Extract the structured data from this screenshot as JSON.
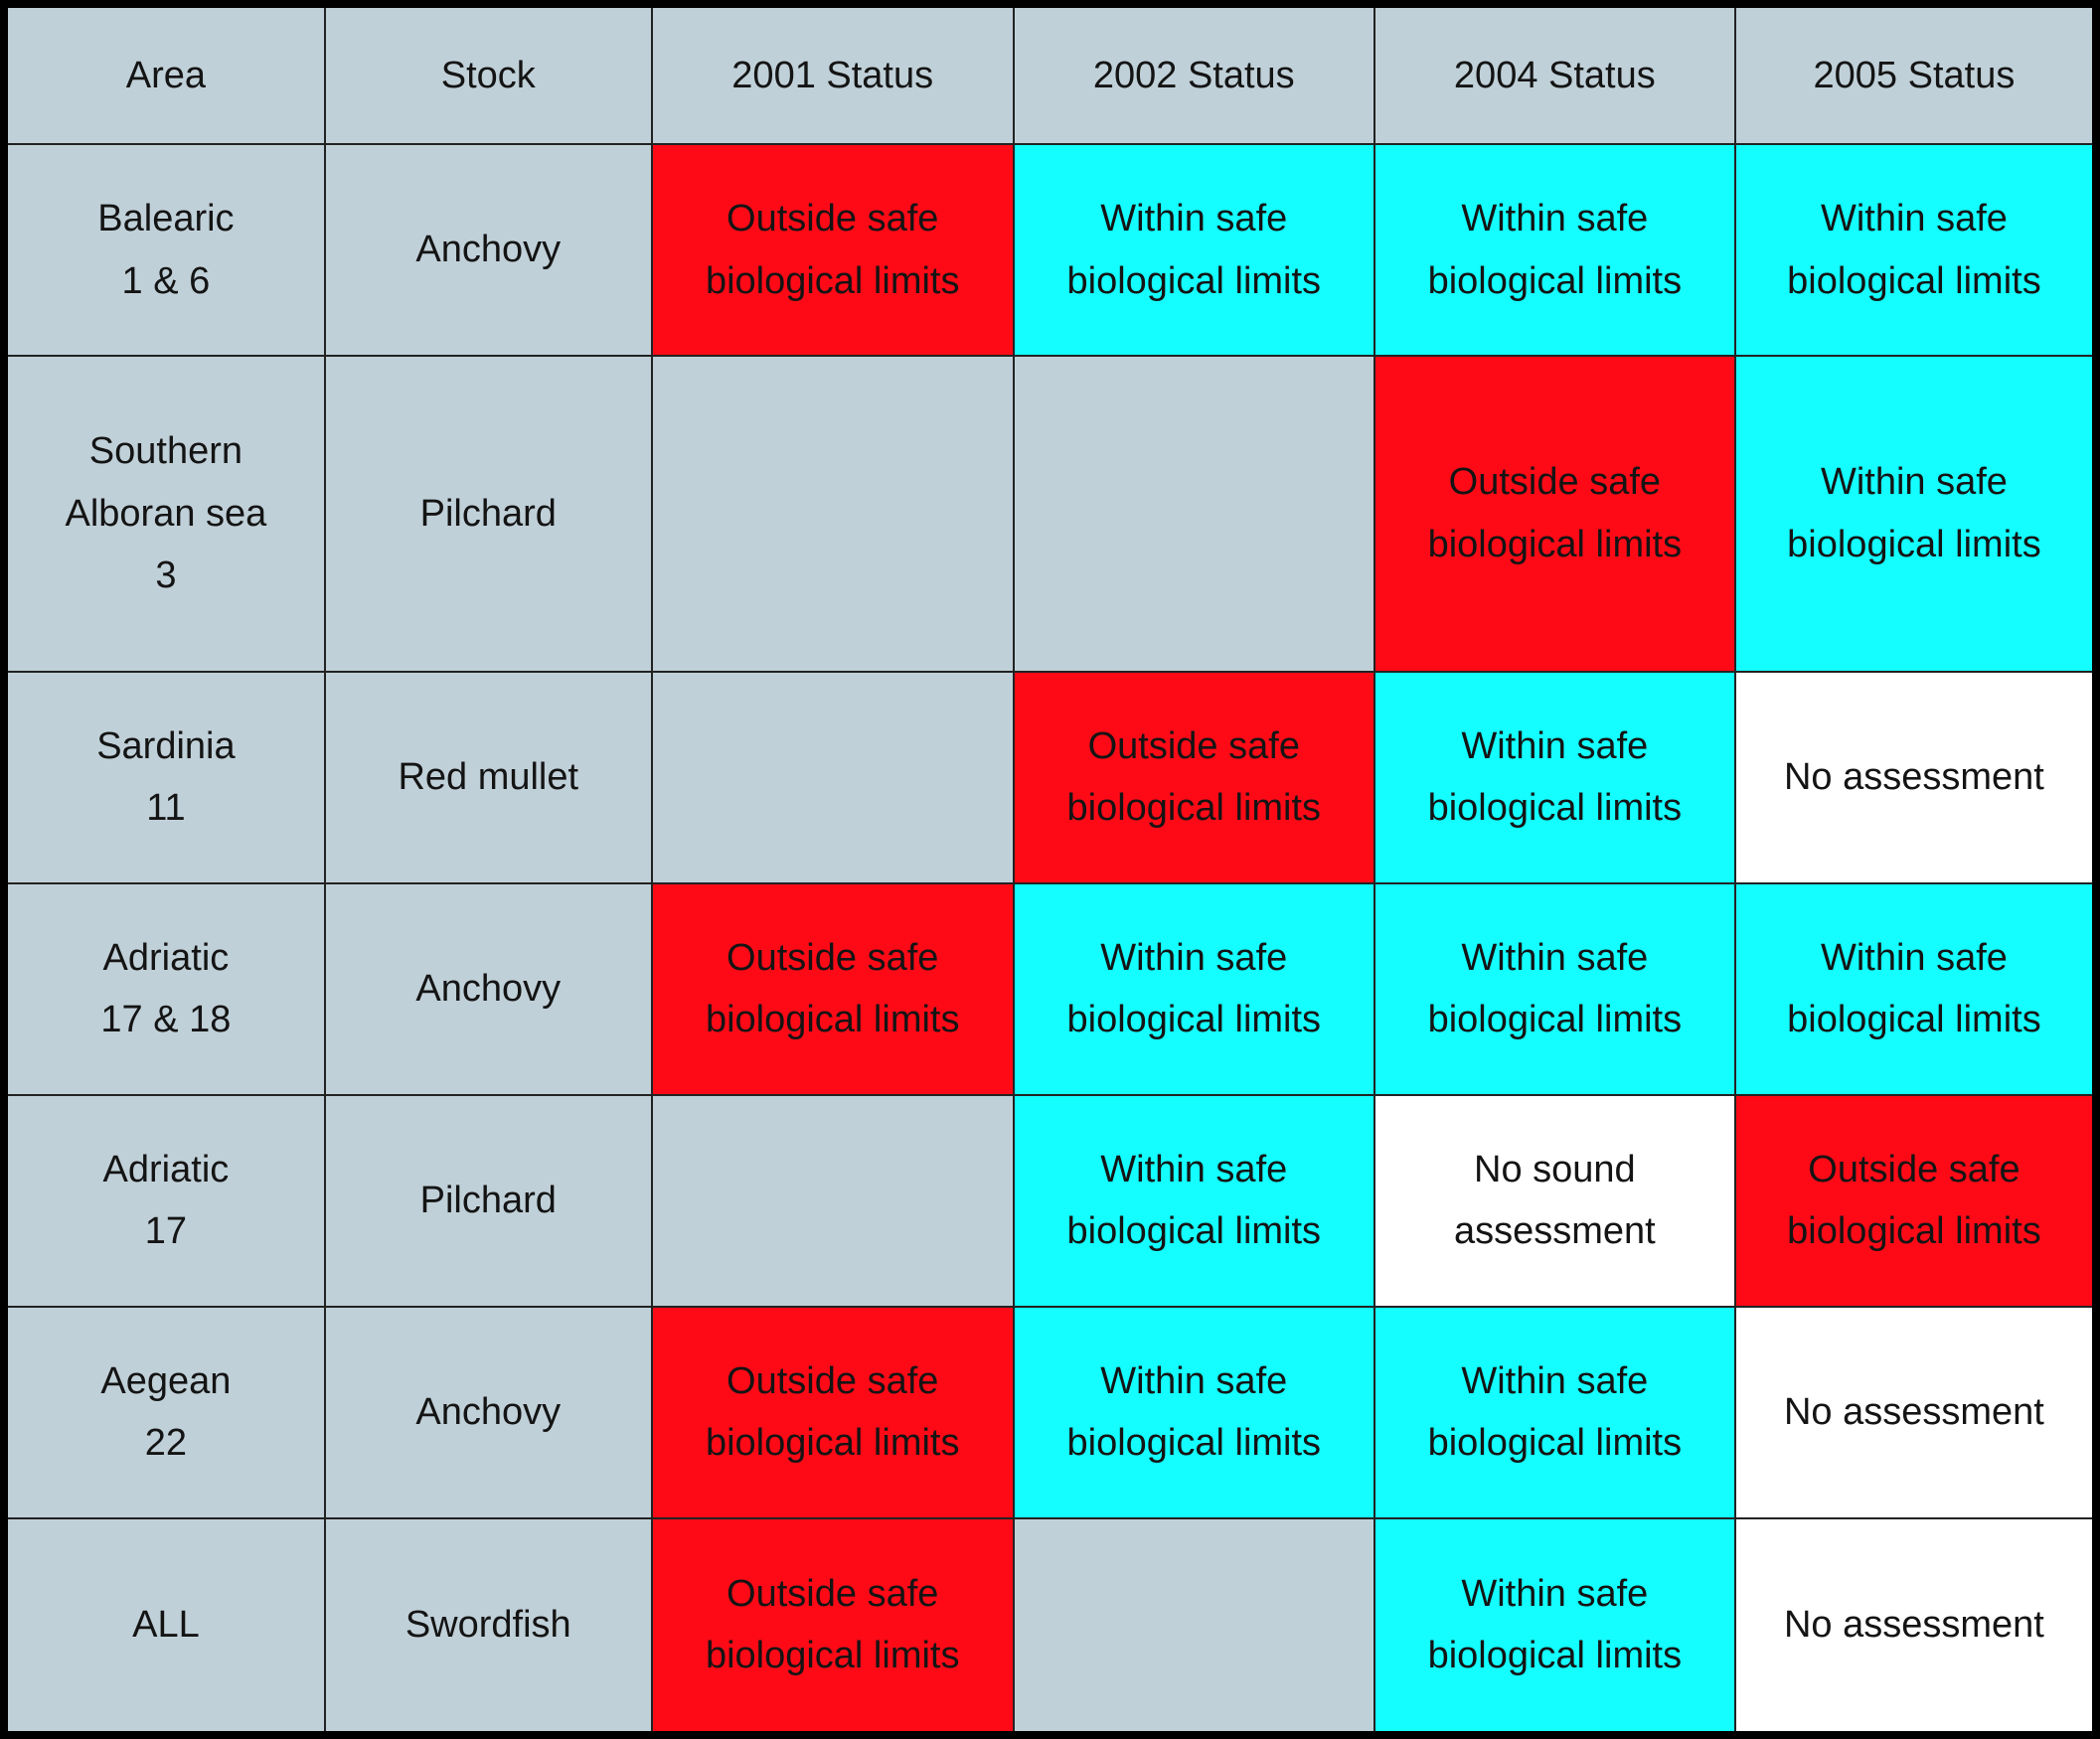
{
  "table": {
    "header": [
      "Area",
      "Stock",
      "2001 Status",
      "2002 Status",
      "2004 Status",
      "2005 Status"
    ],
    "header_fill": "#c0d0d8",
    "rows": [
      {
        "cells": [
          "Balearic\n1 & 6",
          "Anchovy",
          "Outside safe\nbiological limits",
          "Within safe\nbiological limits",
          "Within safe\nbiological limits",
          "Within safe\nbiological limits"
        ],
        "fills": [
          "#c0d0d8",
          "#c0d0d8",
          "#fe0a17",
          "#14feff",
          "#14feff",
          "#14feff"
        ]
      },
      {
        "cells": [
          "Southern\nAlboran sea\n3",
          "Pilchard",
          null,
          null,
          "Outside safe\nbiological limits",
          "Within safe\nbiological limits"
        ],
        "fills": [
          "#c0d0d8",
          "#c0d0d8",
          "#c0d0d8",
          "#c0d0d8",
          "#fe0a17",
          "#14feff"
        ]
      },
      {
        "cells": [
          "Sardinia\n11",
          "Red mullet",
          null,
          "Outside safe\nbiological limits",
          "Within safe\nbiological limits",
          "No assessment"
        ],
        "fills": [
          "#c0d0d8",
          "#c0d0d8",
          "#c0d0d8",
          "#fe0a17",
          "#14feff",
          "#ffffff"
        ]
      },
      {
        "cells": [
          "Adriatic\n17 & 18",
          "Anchovy",
          "Outside safe\nbiological limits",
          "Within safe\nbiological limits",
          "Within safe\nbiological limits",
          "Within safe\nbiological limits"
        ],
        "fills": [
          "#c0d0d8",
          "#c0d0d8",
          "#fe0a17",
          "#14feff",
          "#14feff",
          "#14feff"
        ]
      },
      {
        "cells": [
          "Adriatic\n17",
          "Pilchard",
          null,
          "Within safe\nbiological limits",
          "No sound\nassessment",
          "Outside safe\nbiological limits"
        ],
        "fills": [
          "#c0d0d8",
          "#c0d0d8",
          "#c0d0d8",
          "#14feff",
          "#ffffff",
          "#fe0a17"
        ]
      },
      {
        "cells": [
          "Aegean\n22",
          "Anchovy",
          "Outside safe\nbiological limits",
          "Within safe\nbiological limits",
          "Within safe\nbiological limits",
          "No assessment"
        ],
        "fills": [
          "#c0d0d8",
          "#c0d0d8",
          "#fe0a17",
          "#14feff",
          "#14feff",
          "#ffffff"
        ]
      },
      {
        "cells": [
          "ALL",
          "Swordfish",
          "Outside safe\nbiological limits",
          null,
          "Within safe\nbiological limits",
          "No assessment"
        ],
        "fills": [
          "#c0d0d8",
          "#c0d0d8",
          "#fe0a17",
          "#c0d0d8",
          "#14feff",
          "#ffffff"
        ]
      }
    ]
  }
}
